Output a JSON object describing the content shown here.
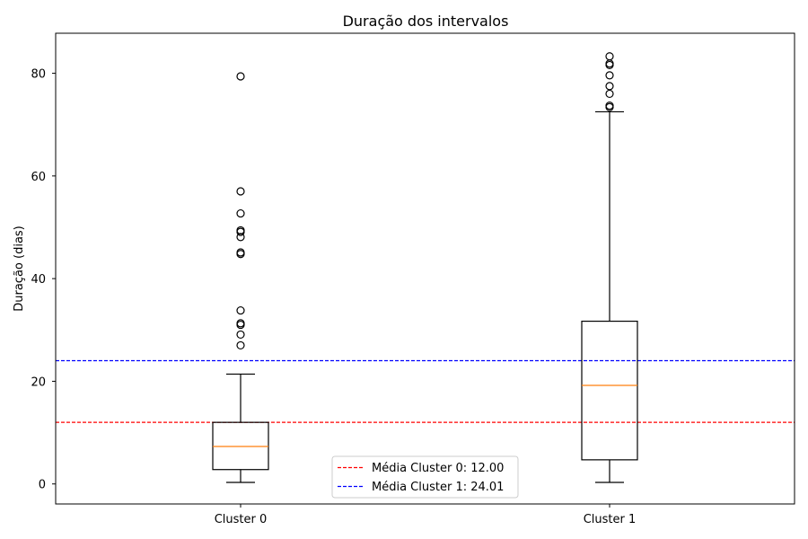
{
  "chart_data": {
    "type": "boxplot",
    "title": "Duração dos intervalos",
    "xlabel": "",
    "ylabel": "Duração (dias)",
    "ylim": [
      -3.9,
      87.8
    ],
    "yticks": [
      0,
      20,
      40,
      60,
      80
    ],
    "categories": [
      "Cluster 0",
      "Cluster 1"
    ],
    "boxes": [
      {
        "name": "Cluster 0",
        "whisker_low": 0.3,
        "q1": 2.8,
        "median": 7.3,
        "q3": 12.0,
        "whisker_high": 21.4,
        "outliers": [
          27.0,
          29.1,
          31.0,
          31.3,
          33.8,
          44.8,
          45.1,
          48.1,
          49.1,
          49.4,
          52.7,
          57.0,
          79.4
        ]
      },
      {
        "name": "Cluster 1",
        "whisker_low": 0.3,
        "q1": 4.7,
        "median": 19.2,
        "q3": 31.7,
        "whisker_high": 72.5,
        "outliers": [
          73.4,
          73.7,
          76.0,
          77.5,
          79.6,
          81.6,
          81.9,
          83.3
        ]
      }
    ],
    "reference_lines": [
      {
        "label": "Média Cluster 0: 12.00",
        "value": 12.0,
        "color": "#ff0000",
        "style": "dashed"
      },
      {
        "label": "Média Cluster 1: 24.01",
        "value": 24.01,
        "color": "#0000ff",
        "style": "dashed"
      }
    ],
    "legend_position": "lower-center",
    "median_color": "#ff7f0e",
    "grid": false
  }
}
